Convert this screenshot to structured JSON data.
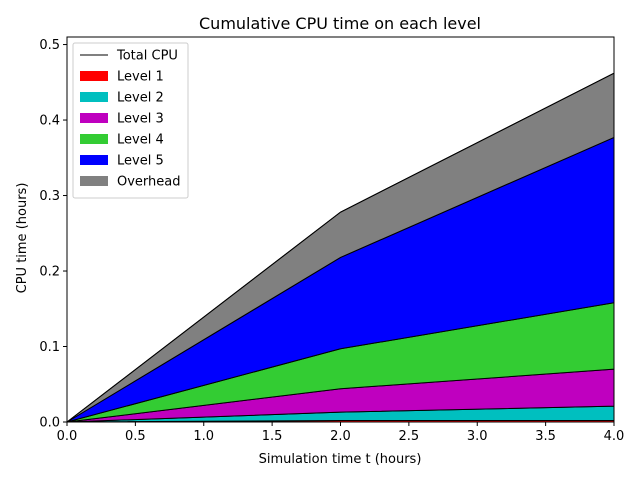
{
  "chart_data": {
    "type": "area",
    "title": "Cumulative CPU time on each level",
    "xlabel": "Simulation time t (hours)",
    "ylabel": "CPU time (hours)",
    "xlim": [
      0,
      4
    ],
    "ylim": [
      0,
      0.51
    ],
    "xticks": [
      "0.0",
      "0.5",
      "1.0",
      "1.5",
      "2.0",
      "2.5",
      "3.0",
      "3.5",
      "4.0"
    ],
    "yticks": [
      "0.0",
      "0.1",
      "0.2",
      "0.3",
      "0.4",
      "0.5"
    ],
    "x": [
      0,
      2,
      4
    ],
    "stacked": true,
    "grid": false,
    "legend_position": "top-left",
    "series": [
      {
        "name": "Level 1",
        "color": "#ff0000",
        "values": [
          0,
          0.002,
          0.002
        ]
      },
      {
        "name": "Level 2",
        "color": "#00bfbf",
        "values": [
          0,
          0.011,
          0.019
        ]
      },
      {
        "name": "Level 3",
        "color": "#bf00bf",
        "values": [
          0,
          0.031,
          0.049
        ]
      },
      {
        "name": "Level 4",
        "color": "#33cc33",
        "values": [
          0,
          0.053,
          0.088
        ]
      },
      {
        "name": "Level 5",
        "color": "#0000ff",
        "values": [
          0,
          0.121,
          0.219
        ]
      },
      {
        "name": "Overhead",
        "color": "#808080",
        "values": [
          0,
          0.06,
          0.085
        ]
      }
    ],
    "total": {
      "name": "Total CPU",
      "color": "#000000",
      "values": [
        0,
        0.278,
        0.462
      ]
    }
  }
}
